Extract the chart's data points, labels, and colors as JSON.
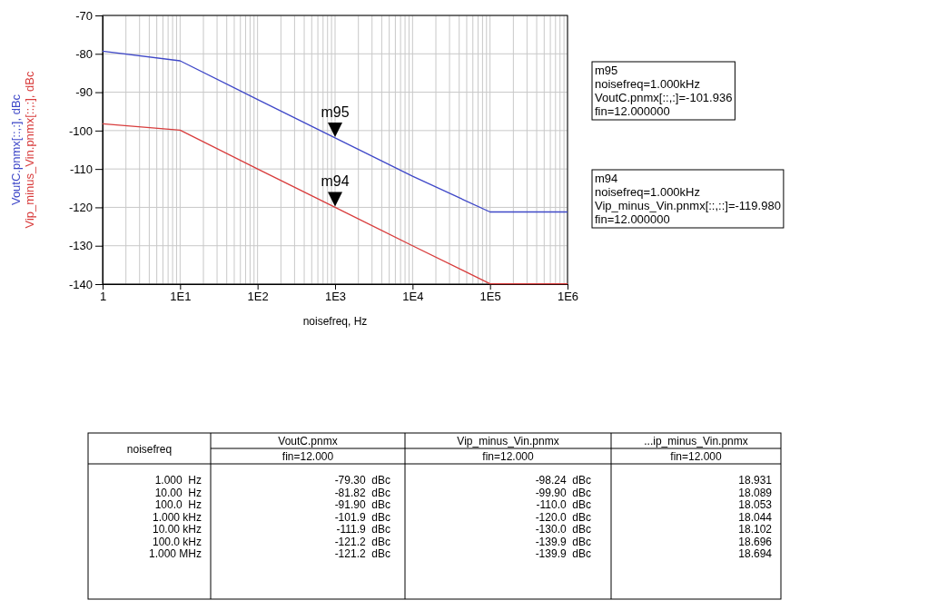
{
  "chart_data": [
    {
      "type": "line",
      "xlabel": "noisefreq, Hz",
      "log": "x",
      "grid": true,
      "x": [
        1,
        10,
        100,
        1000,
        10000,
        100000,
        1000000
      ],
      "xlim": [
        1,
        1000000
      ],
      "xticks": [
        1,
        {
          "value": 10,
          "label": "1E1"
        },
        {
          "value": 100,
          "label": "1E2"
        },
        {
          "value": 1000,
          "label": "1E3"
        },
        {
          "value": 10000,
          "label": "1E4"
        },
        {
          "value": 100000,
          "label": "1E5"
        },
        {
          "value": 1000000,
          "label": "1E6"
        }
      ],
      "ylim": [
        -140,
        -70
      ],
      "yticks": [
        -140,
        -130,
        -120,
        -110,
        -100,
        -90,
        -80,
        -70
      ],
      "series": [
        {
          "name": "VoutC.pnmx[::,:], dBc",
          "color": "#3f48c8",
          "values": [
            -79.3,
            -81.82,
            -91.9,
            -101.9,
            -111.9,
            -121.2,
            -121.2
          ]
        },
        {
          "name": "Vip_minus_Vin.pnmx[::,:], dBc",
          "color": "#d83c3c",
          "values": [
            -98.24,
            -99.9,
            -110.0,
            -120.0,
            -130.0,
            -139.9,
            -139.9
          ]
        }
      ],
      "annotations": [
        {
          "text": "m95",
          "x": 1000,
          "y": -101.9
        },
        {
          "text": "m94",
          "x": 1000,
          "y": -120.0
        },
        "m95\nnoisefreq=1.000kHz\nVoutC.pnmx[::,:]=-101.936\nfin=12.000000",
        "m94\nnoisefreq=1.000kHz\nVip_minus_Vin.pnmx[::,::]=-119.980\nfin=12.000000"
      ]
    },
    {
      "type": "other",
      "annotations": [
        "noisefreq",
        "VoutC.pnmx",
        "fin=12.000",
        "Vip_minus_Vin.pnmx",
        "fin=12.000",
        "...ip_minus_Vin.pnmx",
        "fin=12.000",
        "1.000  Hz\n10.00  Hz\n100.0  Hz\n1.000 kHz\n10.00 kHz\n100.0 kHz\n1.000 MHz",
        "-79.30  dBc\n-81.82  dBc\n-91.90  dBc\n-101.9  dBc\n-111.9  dBc\n-121.2  dBc\n-121.2  dBc",
        "-98.24  dBc\n-99.90  dBc\n-110.0  dBc\n-120.0  dBc\n-130.0  dBc\n-139.9  dBc\n-139.9  dBc",
        "18.931\n18.089\n18.053\n18.044\n18.102\n18.696\n18.694"
      ]
    }
  ]
}
